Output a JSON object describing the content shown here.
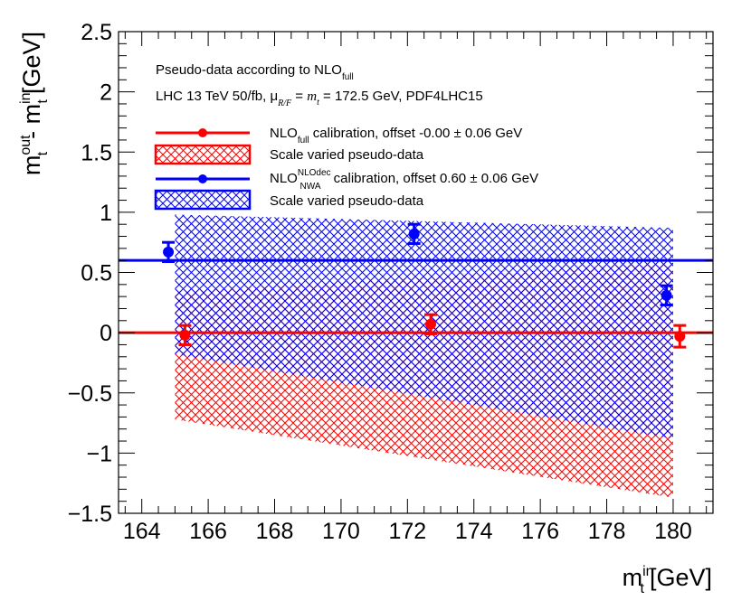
{
  "chart_data": {
    "type": "scatter",
    "title": "",
    "xlabel": {
      "main": "m",
      "sup": "in",
      "sub": "t",
      "unit": "[GeV]"
    },
    "ylabel": {
      "main": "m",
      "sup1": "out",
      "sub1": "t",
      "minus": "- m",
      "sup2": "in",
      "sub2": "t",
      "unit": "[GeV]"
    },
    "xlim": [
      163.3,
      181.2
    ],
    "ylim": [
      -1.5,
      2.5
    ],
    "x_ticks": [
      164,
      166,
      168,
      170,
      172,
      174,
      176,
      178,
      180
    ],
    "x_tick_labels": [
      "164",
      "166",
      "168",
      "170",
      "172",
      "174",
      "176",
      "178",
      "180"
    ],
    "y_ticks": [
      -1.5,
      -1,
      -0.5,
      0,
      0.5,
      1,
      1.5,
      2,
      2.5
    ],
    "y_tick_labels": [
      "−1.5",
      "−1",
      "−0.5",
      "0",
      "0.5",
      "1",
      "1.5",
      "2",
      "2.5"
    ],
    "annotations": {
      "line1": {
        "pre": "Pseudo-data according to NLO",
        "sub": "full"
      },
      "line2": {
        "pre": "LHC 13 TeV 50/fb, ",
        "mu": "μ",
        "mu_sub": "R/F",
        "eq": " = ",
        "mt": "m",
        "mt_sub": "t",
        "post": " = 172.5 GeV, PDF4LHC15"
      }
    },
    "series": [
      {
        "name": "NLO_full",
        "color": "#ff0000",
        "legend": {
          "pre": "NLO",
          "sub": "full",
          "post": " calibration, offset -0.00 ± 0.06 GeV"
        },
        "offset": -0.0,
        "points": [
          {
            "x": 165.3,
            "y": -0.02,
            "err": 0.08
          },
          {
            "x": 172.7,
            "y": 0.07,
            "err": 0.08
          },
          {
            "x": 180.2,
            "y": -0.03,
            "err": 0.09
          }
        ],
        "band": {
          "x": [
            165.0,
            180.0
          ],
          "upper": [
            0.34,
            0.58
          ],
          "lower": [
            -0.72,
            -1.37
          ]
        },
        "band_legend": "Scale varied pseudo-data"
      },
      {
        "name": "NLO_NWA_NLOdec",
        "color": "#0000ff",
        "legend": {
          "pre": "NLO",
          "sup": "NLOdec",
          "sub": "NWA",
          "post": " calibration, offset 0.60 ± 0.06 GeV"
        },
        "offset": 0.6,
        "points": [
          {
            "x": 164.8,
            "y": 0.67,
            "err": 0.08
          },
          {
            "x": 172.2,
            "y": 0.82,
            "err": 0.08
          },
          {
            "x": 179.8,
            "y": 0.31,
            "err": 0.08
          }
        ],
        "band": {
          "x": [
            165.0,
            180.0
          ],
          "upper": [
            0.98,
            0.87
          ],
          "lower": [
            -0.18,
            -0.88
          ]
        },
        "band_legend": "Scale varied pseudo-data"
      }
    ]
  }
}
